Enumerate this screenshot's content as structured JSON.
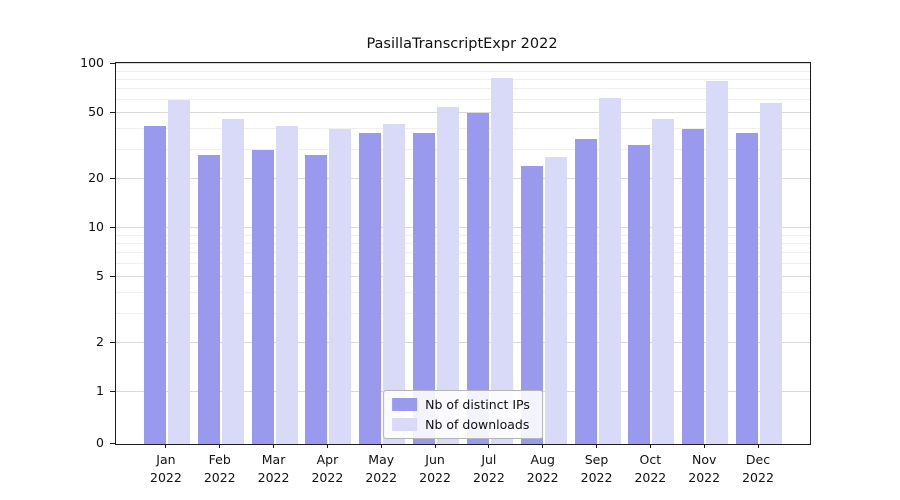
{
  "title": "PasillaTranscriptExpr 2022",
  "chart_data": {
    "type": "bar",
    "title": "PasillaTranscriptExpr 2022",
    "categories": [
      "Jan 2022",
      "Feb 2022",
      "Mar 2022",
      "Apr 2022",
      "May 2022",
      "Jun 2022",
      "Jul 2022",
      "Aug 2022",
      "Sep 2022",
      "Oct 2022",
      "Nov 2022",
      "Dec 2022"
    ],
    "series": [
      {
        "name": "Nb of distinct IPs",
        "color": "#9999ee",
        "values": [
          42,
          28,
          30,
          28,
          38,
          38,
          50,
          24,
          35,
          32,
          40,
          38
        ]
      },
      {
        "name": "Nb of downloads",
        "color": "#d9d9f8",
        "values": [
          60,
          46,
          42,
          40,
          43,
          55,
          82,
          27,
          62,
          46,
          79,
          58
        ]
      }
    ],
    "xlabel": "",
    "ylabel": "",
    "yscale": "symlog",
    "ylim": [
      0,
      100
    ],
    "y_ticks": [
      0,
      1,
      2,
      5,
      10,
      20,
      50,
      100
    ],
    "y_minor_ticks": [
      3,
      4,
      6,
      7,
      8,
      9,
      30,
      40,
      60,
      70,
      80,
      90
    ],
    "grid": true,
    "legend_position": "lower center"
  }
}
